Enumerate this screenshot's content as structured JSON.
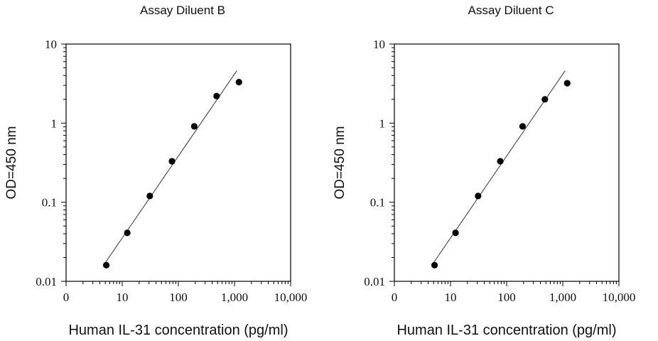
{
  "chart_data": [
    {
      "type": "scatter",
      "title": "Assay Diluent B",
      "xlabel": "Human IL-31 concentration (pg/ml)",
      "ylabel": "OD=450 nm",
      "x_scale": "log",
      "y_scale": "log",
      "xlim": [
        1,
        10000
      ],
      "ylim": [
        0.01,
        10
      ],
      "x_ticks": [
        {
          "value": 1,
          "label": "0"
        },
        {
          "value": 10,
          "label": "10"
        },
        {
          "value": 100,
          "label": "100"
        },
        {
          "value": 1000,
          "label": "1,000"
        },
        {
          "value": 10000,
          "label": "10,000"
        }
      ],
      "y_ticks": [
        {
          "value": 0.01,
          "label": "0.01"
        },
        {
          "value": 0.1,
          "label": "0.1"
        },
        {
          "value": 1,
          "label": "1"
        },
        {
          "value": 10,
          "label": "10"
        }
      ],
      "grid": false,
      "points": {
        "x": [
          5.2,
          12.3,
          31.0,
          77.0,
          192.0,
          480.0,
          1200.0
        ],
        "y": [
          0.016,
          0.041,
          0.12,
          0.33,
          0.91,
          2.2,
          3.3
        ]
      },
      "fit_line": {
        "x": [
          5.0,
          1100.0
        ],
        "y": [
          0.0172,
          4.6
        ]
      }
    },
    {
      "type": "scatter",
      "title": "Assay Diluent C",
      "xlabel": "Human IL-31 concentration (pg/ml)",
      "ylabel": "OD=450 nm",
      "x_scale": "log",
      "y_scale": "log",
      "xlim": [
        1,
        10000
      ],
      "ylim": [
        0.01,
        10
      ],
      "x_ticks": [
        {
          "value": 1,
          "label": "0"
        },
        {
          "value": 10,
          "label": "10"
        },
        {
          "value": 100,
          "label": "100"
        },
        {
          "value": 1000,
          "label": "1,000"
        },
        {
          "value": 10000,
          "label": "10,000"
        }
      ],
      "y_ticks": [
        {
          "value": 0.01,
          "label": "0.01"
        },
        {
          "value": 0.1,
          "label": "0.1"
        },
        {
          "value": 1,
          "label": "1"
        },
        {
          "value": 10,
          "label": "10"
        }
      ],
      "grid": false,
      "points": {
        "x": [
          5.2,
          12.3,
          31.0,
          77.0,
          192.0,
          480.0,
          1200.0
        ],
        "y": [
          0.016,
          0.041,
          0.12,
          0.33,
          0.91,
          2.0,
          3.2
        ]
      },
      "fit_line": {
        "x": [
          5.0,
          1100.0
        ],
        "y": [
          0.0172,
          4.6
        ]
      }
    }
  ]
}
